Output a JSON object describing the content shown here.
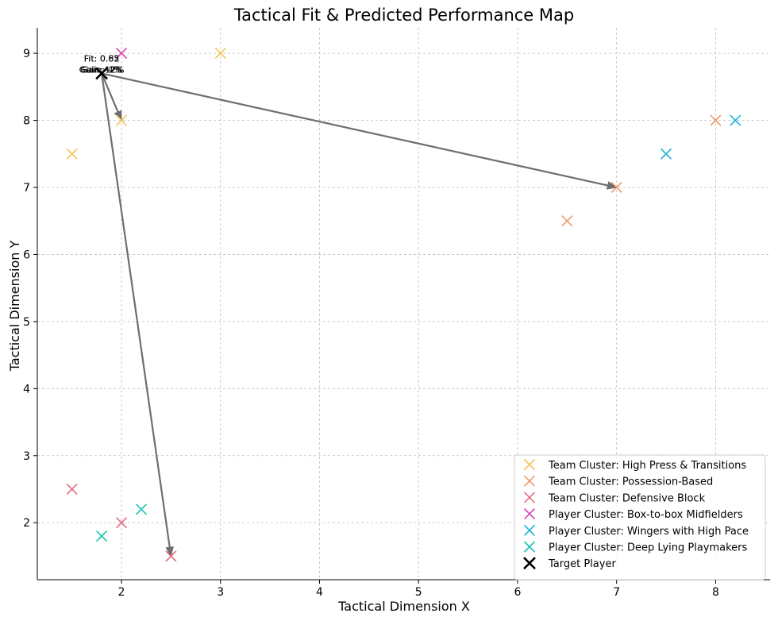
{
  "chart_data": {
    "type": "scatter",
    "title": "Tactical Fit & Predicted Performance Map",
    "xlabel": "Tactical Dimension X",
    "ylabel": "Tactical Dimension Y",
    "xlim": [
      1.15,
      8.55
    ],
    "ylim": [
      1.15,
      9.38
    ],
    "xticks": [
      2,
      3,
      4,
      5,
      6,
      7,
      8
    ],
    "yticks": [
      2,
      3,
      4,
      5,
      6,
      7,
      8,
      9
    ],
    "grid": true,
    "legend_position": "lower-right",
    "series": [
      {
        "name": "Team Cluster: High Press & Transitions",
        "color": "#f5c25a",
        "marker": "x",
        "points": [
          {
            "x": 1.5,
            "y": 7.5
          },
          {
            "x": 2.0,
            "y": 8.0
          },
          {
            "x": 3.0,
            "y": 9.0
          }
        ]
      },
      {
        "name": "Team Cluster: Possession-Based",
        "color": "#ee9866",
        "marker": "x",
        "points": [
          {
            "x": 6.5,
            "y": 6.5
          },
          {
            "x": 7.0,
            "y": 7.0
          },
          {
            "x": 8.0,
            "y": 8.0
          }
        ]
      },
      {
        "name": "Team Cluster: Defensive Block",
        "color": "#e56a82",
        "marker": "x",
        "points": [
          {
            "x": 1.5,
            "y": 2.5
          },
          {
            "x": 2.0,
            "y": 2.0
          },
          {
            "x": 2.5,
            "y": 1.5
          }
        ]
      },
      {
        "name": "Player Cluster: Box-to-box Midfielders",
        "color": "#dc3fb0",
        "marker": "x",
        "points": [
          {
            "x": 2.0,
            "y": 9.0
          }
        ]
      },
      {
        "name": "Player Cluster: Wingers with High Pace",
        "color": "#19b1dc",
        "marker": "x",
        "points": [
          {
            "x": 7.5,
            "y": 7.5
          },
          {
            "x": 8.2,
            "y": 8.0
          }
        ]
      },
      {
        "name": "Player Cluster: Deep Lying Playmakers",
        "color": "#1dc0b3",
        "marker": "x",
        "points": [
          {
            "x": 1.8,
            "y": 1.8
          },
          {
            "x": 2.2,
            "y": 2.2
          }
        ]
      },
      {
        "name": "Target Player",
        "color": "#000000",
        "marker": "x-bold",
        "points": [
          {
            "x": 1.8,
            "y": 8.7
          }
        ]
      }
    ],
    "arrows": [
      {
        "from": [
          1.8,
          8.7
        ],
        "to": [
          2.0,
          8.0
        ]
      },
      {
        "from": [
          1.8,
          8.7
        ],
        "to": [
          7.0,
          7.0
        ]
      },
      {
        "from": [
          1.8,
          8.7
        ],
        "to": [
          2.5,
          1.5
        ]
      }
    ],
    "annotations": [
      {
        "x": 1.8,
        "y": 8.7,
        "fit_lines": [
          "Fit: 0.85",
          "Fit: 0.62"
        ],
        "gain_lines": [
          "Gain: 12%",
          "Gain: 4%",
          "Gain: -2%"
        ]
      }
    ]
  }
}
